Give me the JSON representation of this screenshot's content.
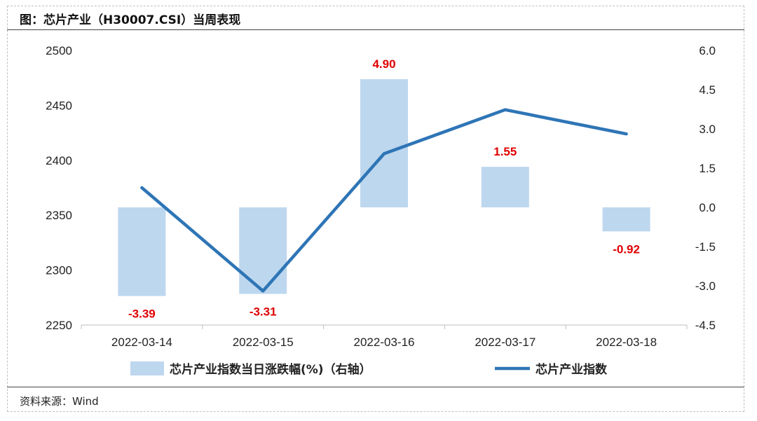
{
  "title": "图：芯片产业（H30007.CSI）当周表现",
  "source": "资料来源：Wind",
  "colors": {
    "bar": "#bdd7ee",
    "line": "#2e75b6",
    "label": "#e00000"
  },
  "chart_data": {
    "type": "bar+line",
    "categories": [
      "2022-03-14",
      "2022-03-15",
      "2022-03-16",
      "2022-03-17",
      "2022-03-18"
    ],
    "series": [
      {
        "name": "芯片产业指数当日涨跌幅(%)（右轴）",
        "type": "bar",
        "axis": "right",
        "values": [
          -3.39,
          -3.31,
          4.9,
          1.55,
          -0.92
        ],
        "labels": [
          "-3.39",
          "-3.31",
          "4.90",
          "1.55",
          "-0.92"
        ]
      },
      {
        "name": "芯片产业指数",
        "type": "line",
        "axis": "left",
        "values": [
          2375,
          2281,
          2406,
          2446,
          2424
        ]
      }
    ],
    "left_axis": {
      "ylim": [
        2250,
        2500
      ],
      "ticks": [
        "2500",
        "2450",
        "2400",
        "2350",
        "2300",
        "2250"
      ]
    },
    "right_axis": {
      "ylim": [
        -4.5,
        6.0
      ],
      "ticks": [
        "6.0",
        "4.5",
        "3.0",
        "1.5",
        "0.0",
        "-1.5",
        "-3.0",
        "-4.5"
      ]
    },
    "legend_position": "bottom",
    "grid": false
  }
}
